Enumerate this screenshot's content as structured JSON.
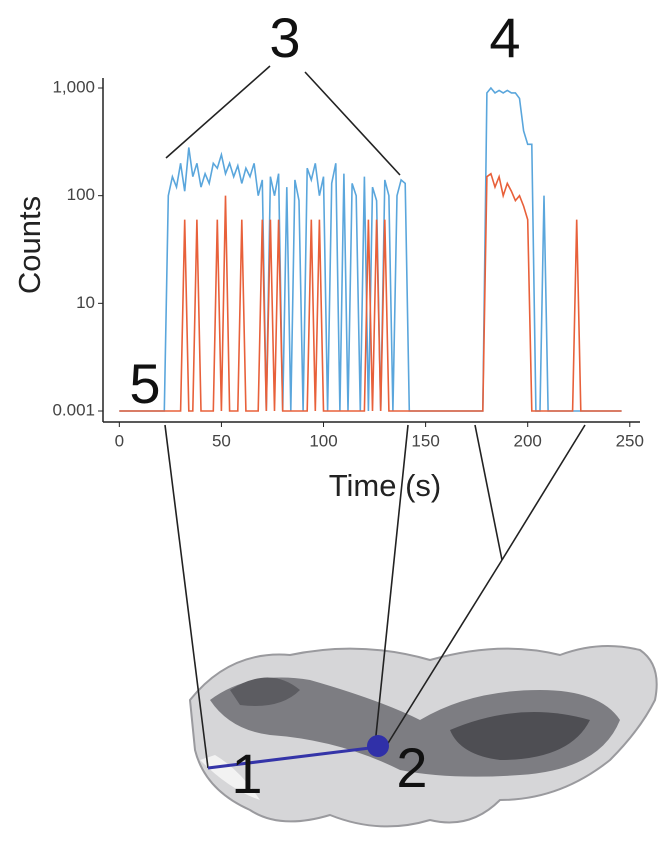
{
  "chart_data": {
    "type": "line",
    "xlabel": "Time (s)",
    "ylabel": "Counts",
    "annotations": [
      "3",
      "4",
      "5",
      "1",
      "2"
    ],
    "x": [
      0,
      2,
      4,
      6,
      8,
      10,
      12,
      14,
      16,
      18,
      20,
      22,
      24,
      26,
      28,
      30,
      32,
      34,
      36,
      38,
      40,
      42,
      44,
      46,
      48,
      50,
      52,
      54,
      56,
      58,
      60,
      62,
      64,
      66,
      68,
      70,
      72,
      74,
      76,
      78,
      80,
      82,
      84,
      86,
      88,
      90,
      92,
      94,
      96,
      98,
      100,
      102,
      104,
      106,
      108,
      110,
      112,
      114,
      116,
      118,
      120,
      122,
      124,
      126,
      128,
      130,
      132,
      134,
      136,
      138,
      140,
      142,
      144,
      146,
      148,
      150,
      152,
      154,
      156,
      158,
      160,
      162,
      164,
      166,
      168,
      170,
      172,
      174,
      176,
      178,
      180,
      182,
      184,
      186,
      188,
      190,
      192,
      194,
      196,
      198,
      200,
      202,
      204,
      206,
      208,
      210,
      212,
      214,
      216,
      218,
      220,
      222,
      224,
      226,
      228,
      230,
      232,
      234,
      236,
      238,
      240,
      242,
      244,
      246
    ],
    "series": [
      {
        "color": "#5aa6dc",
        "values": [
          0.001,
          0.001,
          0.001,
          0.001,
          0.001,
          0.001,
          0.001,
          0.001,
          0.001,
          0.001,
          0.001,
          0.001,
          100,
          150,
          120,
          200,
          110,
          280,
          150,
          200,
          120,
          160,
          130,
          200,
          180,
          240,
          160,
          200,
          150,
          190,
          130,
          180,
          150,
          200,
          100,
          140,
          0.001,
          150,
          100,
          160,
          0.001,
          120,
          0.001,
          140,
          90,
          0.001,
          180,
          140,
          200,
          100,
          150,
          0.001,
          130,
          200,
          0.001,
          160,
          0.001,
          130,
          100,
          0.001,
          150,
          0.001,
          120,
          90,
          0.001,
          140,
          100,
          0.001,
          100,
          140,
          130,
          0.001,
          0.001,
          0.001,
          0.001,
          0.001,
          0.001,
          0.001,
          0.001,
          0.001,
          0.001,
          0.001,
          0.001,
          0.001,
          0.001,
          0.001,
          0.001,
          0.001,
          0.001,
          0.001,
          900,
          1000,
          900,
          950,
          900,
          950,
          900,
          900,
          800,
          400,
          300,
          300,
          0.001,
          0.001,
          100,
          0.001,
          0.001,
          0.001,
          0.001,
          0.001,
          0.001,
          0.001,
          0.001,
          0.001,
          0.001,
          0.001,
          0.001,
          0.001,
          0.001,
          0.001,
          0.001,
          0.001,
          0.001,
          0.001
        ]
      },
      {
        "color": "#e8603a",
        "values": [
          0.001,
          0.001,
          0.001,
          0.001,
          0.001,
          0.001,
          0.001,
          0.001,
          0.001,
          0.001,
          0.001,
          0.001,
          0.001,
          0.001,
          0.001,
          0.001,
          60,
          0.001,
          0.001,
          60,
          0.001,
          0.001,
          0.001,
          0.001,
          60,
          0.001,
          100,
          0.001,
          0.001,
          0.001,
          60,
          0.001,
          0.001,
          0.001,
          0.001,
          60,
          0.001,
          60,
          0.001,
          60,
          0.001,
          0.001,
          0.001,
          0.001,
          0.001,
          0.001,
          0.001,
          60,
          0.001,
          60,
          0.001,
          0.001,
          0.001,
          0.001,
          0.001,
          0.001,
          0.001,
          0.001,
          0.001,
          0.001,
          0.001,
          60,
          0.001,
          60,
          0.001,
          60,
          0.001,
          0.001,
          0.001,
          0.001,
          0.001,
          0.001,
          0.001,
          0.001,
          0.001,
          0.001,
          0.001,
          0.001,
          0.001,
          0.001,
          0.001,
          0.001,
          0.001,
          0.001,
          0.001,
          0.001,
          0.001,
          0.001,
          0.001,
          0.001,
          150,
          160,
          120,
          150,
          100,
          130,
          110,
          90,
          100,
          80,
          60,
          0.001,
          0.001,
          0.001,
          0.001,
          0.001,
          0.001,
          0.001,
          0.001,
          0.001,
          0.001,
          0.001,
          60,
          0.001,
          0.001,
          0.001,
          0.001,
          0.001,
          0.001,
          0.001,
          0.001,
          0.001,
          0.001,
          0.001
        ]
      }
    ],
    "xlim": [
      -8,
      255
    ],
    "xticks": [
      0,
      50,
      100,
      150,
      200,
      250
    ],
    "ylim": [
      0.001,
      1000
    ],
    "yticks": [
      0.001,
      10,
      100,
      {
        "value": 1000,
        "label": "1,000"
      }
    ],
    "grid": false
  }
}
